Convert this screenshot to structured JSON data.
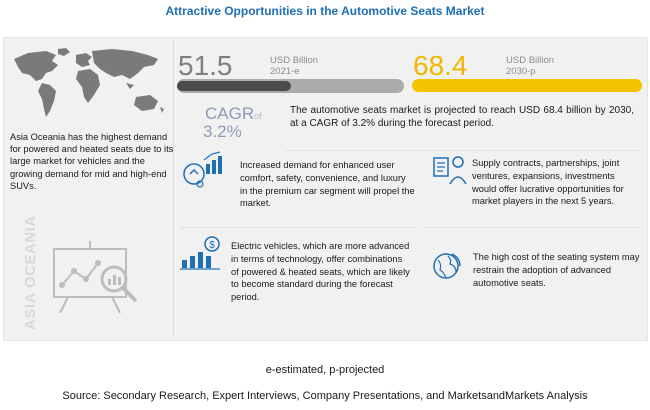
{
  "title": "Attractive Opportunities in the Automotive Seats Market",
  "left": {
    "text": "Asia Oceania has the highest demand for powered and heated seats due to its large market for vehicles and the growing demand for mid and high-end SUVs.",
    "vertical_label": "ASIA OCEANIA"
  },
  "stats": {
    "value_2021": "51.5",
    "unit_2021": "USD Billion",
    "year_2021": "2021-e",
    "value_2030": "68.4",
    "unit_2030": "USD Billion",
    "year_2030": "2030-p",
    "cagr_label": "CAGR",
    "cagr_value": "3.2%",
    "of_label": "of",
    "market_text": "The automotive seats market is projected to reach USD 68.4 billion by 2030, at a CAGR of 3.2% during the forecast period."
  },
  "cards": [
    {
      "text": "Increased demand for enhanced user comfort, safety, convenience, and luxury in the premium car segment will propel the market."
    },
    {
      "text": "Supply contracts, partnerships, joint ventures, expansions, investments would offer lucrative opportunities for market players in the next 5 years."
    },
    {
      "text": "Electric vehicles, which are more advanced in terms of technology, offer combinations of powered & heated seats, which are likely to become standard during the forecast period."
    },
    {
      "text": "The high cost of the seating system may restrain the adoption of advanced automotive seats."
    }
  ],
  "footer": {
    "note": "e-estimated, p-projected",
    "source": "Source: Secondary Research, Expert Interviews, Company Presentations, and MarketsandMarkets Analysis"
  },
  "colors": {
    "title": "#1f6fb4",
    "accent_yellow": "#f5c400",
    "gray_bar": "#ababab",
    "cagr": "#8c9bb3"
  }
}
